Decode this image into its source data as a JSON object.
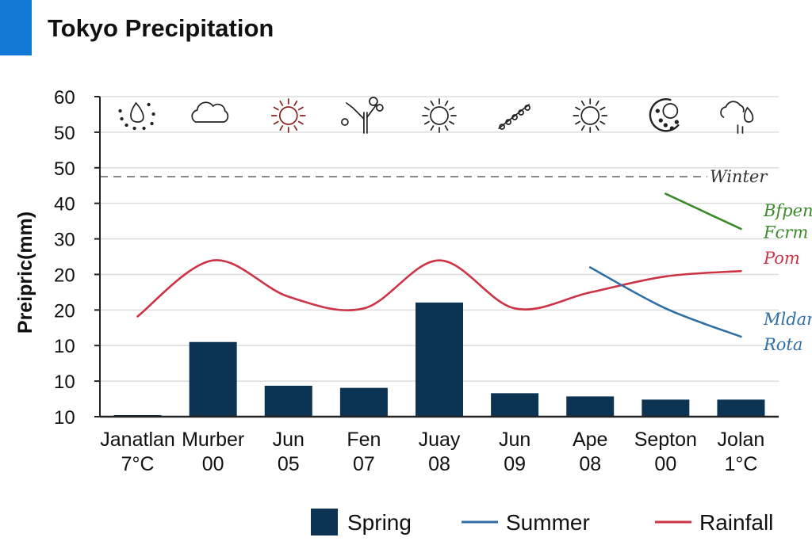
{
  "header": {
    "title": "Tokyo Precipitation"
  },
  "colors": {
    "accent": "#1177d4",
    "bar": "#0d3352",
    "rainfall": "#cc3344",
    "summer": "#2f6fa6",
    "green": "#3a8a2a",
    "grid": "#dddddd",
    "axis": "#222222",
    "dashed": "#888888"
  },
  "chart_data": {
    "type": "bar",
    "title": "Tokyo Precipitation",
    "ylabel": "Preipric(mm)",
    "xlabel": "",
    "ylim": [
      0,
      60
    ],
    "y_tick_labels": [
      "10",
      "10",
      "10",
      "20",
      "20",
      "30",
      "40",
      "50",
      "50",
      "60"
    ],
    "categories": [
      [
        "Janatlan",
        "7°C"
      ],
      [
        "Murber",
        "00"
      ],
      [
        "Jun",
        "05"
      ],
      [
        "Fen",
        "07"
      ],
      [
        "Juay",
        "08"
      ],
      [
        "Jun",
        "09"
      ],
      [
        "Ape",
        "08"
      ],
      [
        "Septon",
        "00"
      ],
      [
        "Jolan",
        "1°C"
      ]
    ],
    "icons": [
      "rain-cloud-icon",
      "cloud-icon",
      "sun-icon",
      "tree-icon",
      "sun-icon",
      "rain-drops-icon",
      "sun-icon",
      "moon-snow-icon",
      "cloud-rain-icon"
    ],
    "series": [
      {
        "name": "Spring",
        "type": "bar",
        "values": [
          0.3,
          14,
          5.8,
          5.4,
          21.4,
          4.4,
          3.8,
          3.2,
          3.2
        ]
      },
      {
        "name": "Rainfall",
        "type": "line",
        "x": [
          1,
          2,
          3,
          4,
          5,
          6,
          7,
          8,
          9
        ],
        "values": [
          18.8,
          29.3,
          22.5,
          20.3,
          29.3,
          20.3,
          23.3,
          26.3,
          27.3
        ]
      },
      {
        "name": "Summer",
        "type": "line",
        "x": [
          7,
          8,
          9
        ],
        "values": [
          28,
          20.3,
          15
        ]
      },
      {
        "name": "",
        "type": "line",
        "x": [
          8,
          9
        ],
        "values": [
          41.8,
          35.2
        ]
      }
    ],
    "reference_line": {
      "label": "Winter",
      "value": 45
    },
    "annotations": [
      {
        "text": "Bfpen",
        "x": 9.3,
        "y": 37.6,
        "color": "green"
      },
      {
        "text": "Fcrm",
        "x": 9.3,
        "y": 33.5,
        "color": "green"
      },
      {
        "text": "Pom",
        "x": 9.3,
        "y": 28.7,
        "color": "rainfall"
      },
      {
        "text": "Mldan",
        "x": 9.3,
        "y": 17.2,
        "color": "summer"
      },
      {
        "text": "Rota",
        "x": 9.3,
        "y": 12.5,
        "color": "summer"
      }
    ],
    "legend": {
      "position": "bottom",
      "entries": [
        "Spring",
        "Summer",
        "Rainfall"
      ]
    },
    "grid": true
  }
}
